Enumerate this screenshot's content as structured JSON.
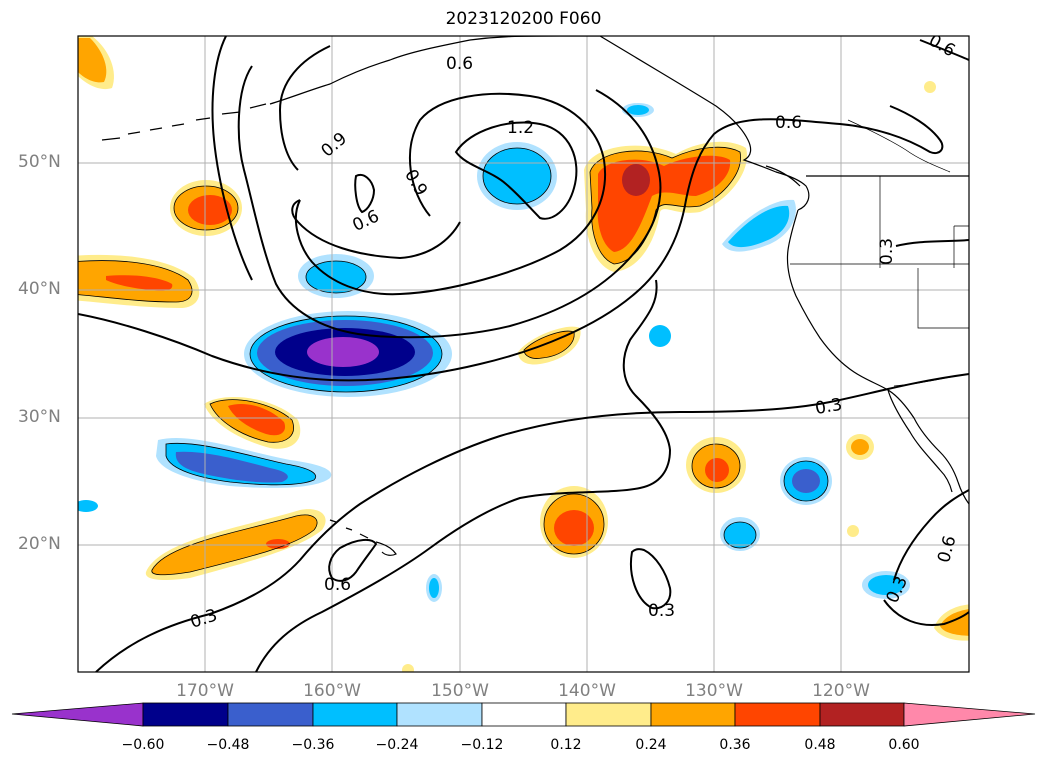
{
  "title": "2023120200 F060",
  "map": {
    "lat_labels": [
      "50°N",
      "40°N",
      "30°N",
      "20°N"
    ],
    "lon_labels": [
      "170°W",
      "160°W",
      "150°W",
      "140°W",
      "130°W",
      "120°W"
    ],
    "contour_labels": [
      "0.6",
      "0.9",
      "1.2",
      "0.9",
      "0.6",
      "0.6",
      "0.6",
      "0.3",
      "0.3",
      "0.3",
      "0.3",
      "0.6",
      "0.3",
      "0.6",
      "0.3"
    ]
  },
  "colorbar": {
    "ticks": [
      "−0.60",
      "−0.48",
      "−0.36",
      "−0.24",
      "−0.12",
      "0.12",
      "0.24",
      "0.36",
      "0.48",
      "0.60"
    ],
    "colors": [
      "#9932cc",
      "#00008b",
      "#3a5fcd",
      "#00bfff",
      "#b0e2ff",
      "#ffffff",
      "#ffec8b",
      "#ffa500",
      "#ff4500",
      "#b22222",
      "#ff88aa"
    ]
  },
  "chart_data": {
    "type": "heatmap",
    "title": "2023120200 F060",
    "xlabel": "",
    "ylabel": "",
    "xlim": [
      "180°W",
      "110°W"
    ],
    "ylim": [
      "10°N",
      "60°N"
    ],
    "grid": true,
    "colorbar_levels": [
      -0.6,
      -0.48,
      -0.36,
      -0.24,
      -0.12,
      0.12,
      0.24,
      0.36,
      0.48,
      0.6
    ],
    "contour_levels": [
      0.3,
      0.6,
      0.9,
      1.2
    ]
  }
}
